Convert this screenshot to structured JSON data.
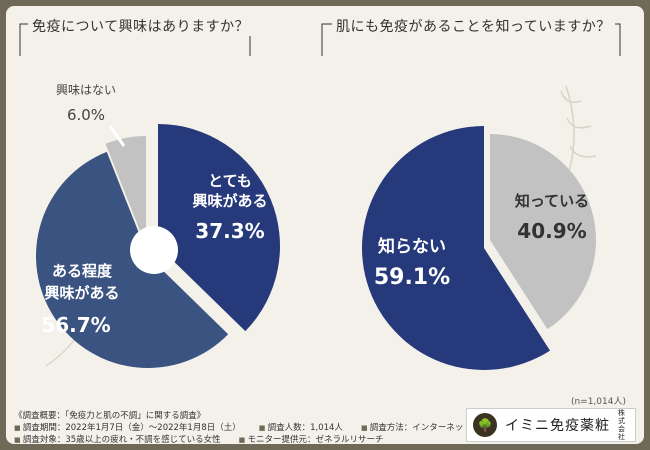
{
  "chart_data": [
    {
      "type": "pie",
      "title": "免疫について興味はありますか？",
      "labels": [
        "とても興味がある",
        "ある程度興味がある",
        "興味はない"
      ],
      "values": [
        37.3,
        56.7,
        6.0
      ],
      "value_labels": [
        "37.3%",
        "56.7%",
        "6.0%"
      ],
      "colors": [
        "#26397a",
        "#3b5380",
        "#c2c2c2"
      ]
    },
    {
      "type": "pie",
      "title": "肌にも免疫があることを知っていますか？",
      "labels": [
        "知っている",
        "知らない"
      ],
      "values": [
        40.9,
        59.1
      ],
      "value_labels": [
        "40.9%",
        "59.1%"
      ],
      "colors": [
        "#c2c2c2",
        "#26397a"
      ]
    }
  ],
  "n_label": "(n=1,014人)",
  "survey": {
    "title": "《調査概要：「免疫力と肌の不調」に関する調査》",
    "row1": [
      "調査期間：2022年1月7日（金）〜2022年1月8日（土）",
      "調査人数：1,014人",
      "調査方法：インターネット調査"
    ],
    "row2": [
      "調査対象：35歳以上の疲れ・不調を感じている女性",
      "モニター提供元：ゼネラルリサーチ"
    ]
  },
  "logo": {
    "name": "イミニ免疫薬粧",
    "sub": "株式会社"
  }
}
